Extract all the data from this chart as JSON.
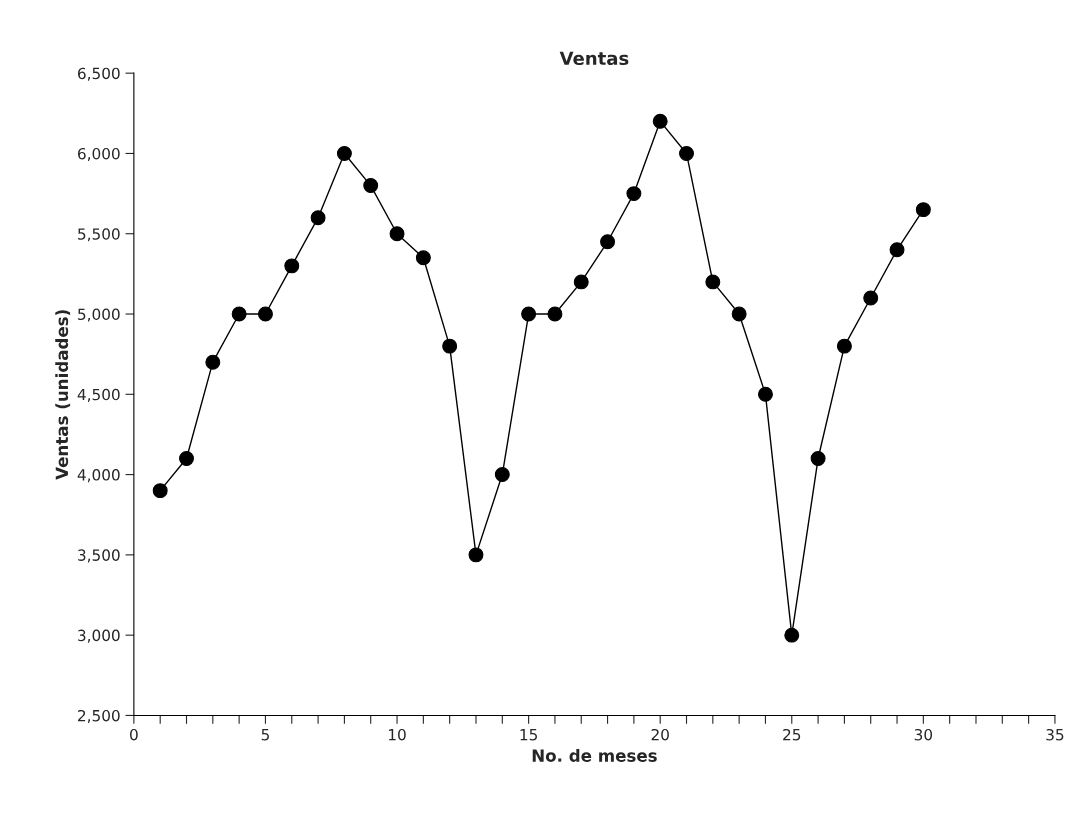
{
  "chart_data": {
    "type": "line",
    "title": "Ventas",
    "xlabel": "No. de meses",
    "ylabel": "Ventas (unidades)",
    "x": [
      1,
      2,
      3,
      4,
      5,
      6,
      7,
      8,
      9,
      10,
      11,
      12,
      13,
      14,
      15,
      16,
      17,
      18,
      19,
      20,
      21,
      22,
      23,
      24,
      25,
      26,
      27,
      28,
      29,
      30
    ],
    "series": [
      {
        "color": "#000000",
        "values": [
          3900,
          4100,
          4700,
          5000,
          5000,
          5300,
          5600,
          6000,
          5800,
          5500,
          5350,
          4800,
          3500,
          4000,
          5000,
          5000,
          5200,
          5450,
          5750,
          6200,
          6000,
          5200,
          5000,
          4500,
          3000,
          4100,
          4800,
          5100,
          5400,
          5650
        ]
      }
    ],
    "xlim": [
      0,
      35
    ],
    "ylim": [
      2500,
      6500
    ],
    "xticks": [
      0,
      {
        "value": 1,
        "label": null
      },
      {
        "value": 2,
        "label": null
      },
      {
        "value": 3,
        "label": null
      },
      {
        "value": 4,
        "label": null
      },
      5,
      {
        "value": 6,
        "label": null
      },
      {
        "value": 7,
        "label": null
      },
      {
        "value": 8,
        "label": null
      },
      {
        "value": 9,
        "label": null
      },
      10,
      {
        "value": 11,
        "label": null
      },
      {
        "value": 12,
        "label": null
      },
      {
        "value": 13,
        "label": null
      },
      {
        "value": 14,
        "label": null
      },
      15,
      {
        "value": 16,
        "label": null
      },
      {
        "value": 17,
        "label": null
      },
      {
        "value": 18,
        "label": null
      },
      {
        "value": 19,
        "label": null
      },
      20,
      {
        "value": 21,
        "label": null
      },
      {
        "value": 22,
        "label": null
      },
      {
        "value": 23,
        "label": null
      },
      {
        "value": 24,
        "label": null
      },
      25,
      {
        "value": 26,
        "label": null
      },
      {
        "value": 27,
        "label": null
      },
      {
        "value": 28,
        "label": null
      },
      {
        "value": 29,
        "label": null
      },
      30,
      {
        "value": 31,
        "label": null
      },
      {
        "value": 32,
        "label": null
      },
      {
        "value": 33,
        "label": null
      },
      {
        "value": 34,
        "label": null
      },
      35
    ],
    "yticks": [
      {
        "value": 2500,
        "label": "2,500"
      },
      {
        "value": 3000,
        "label": "3,000"
      },
      {
        "value": 3500,
        "label": "3,500"
      },
      {
        "value": 4000,
        "label": "4,000"
      },
      {
        "value": 4500,
        "label": "4,500"
      },
      {
        "value": 5000,
        "label": "5,000"
      },
      {
        "value": 5500,
        "label": "5,500"
      },
      {
        "value": 6000,
        "label": "6,000"
      },
      {
        "value": 6500,
        "label": "6,500"
      }
    ],
    "grid": false,
    "marker": "circle",
    "line_style": "solid"
  }
}
